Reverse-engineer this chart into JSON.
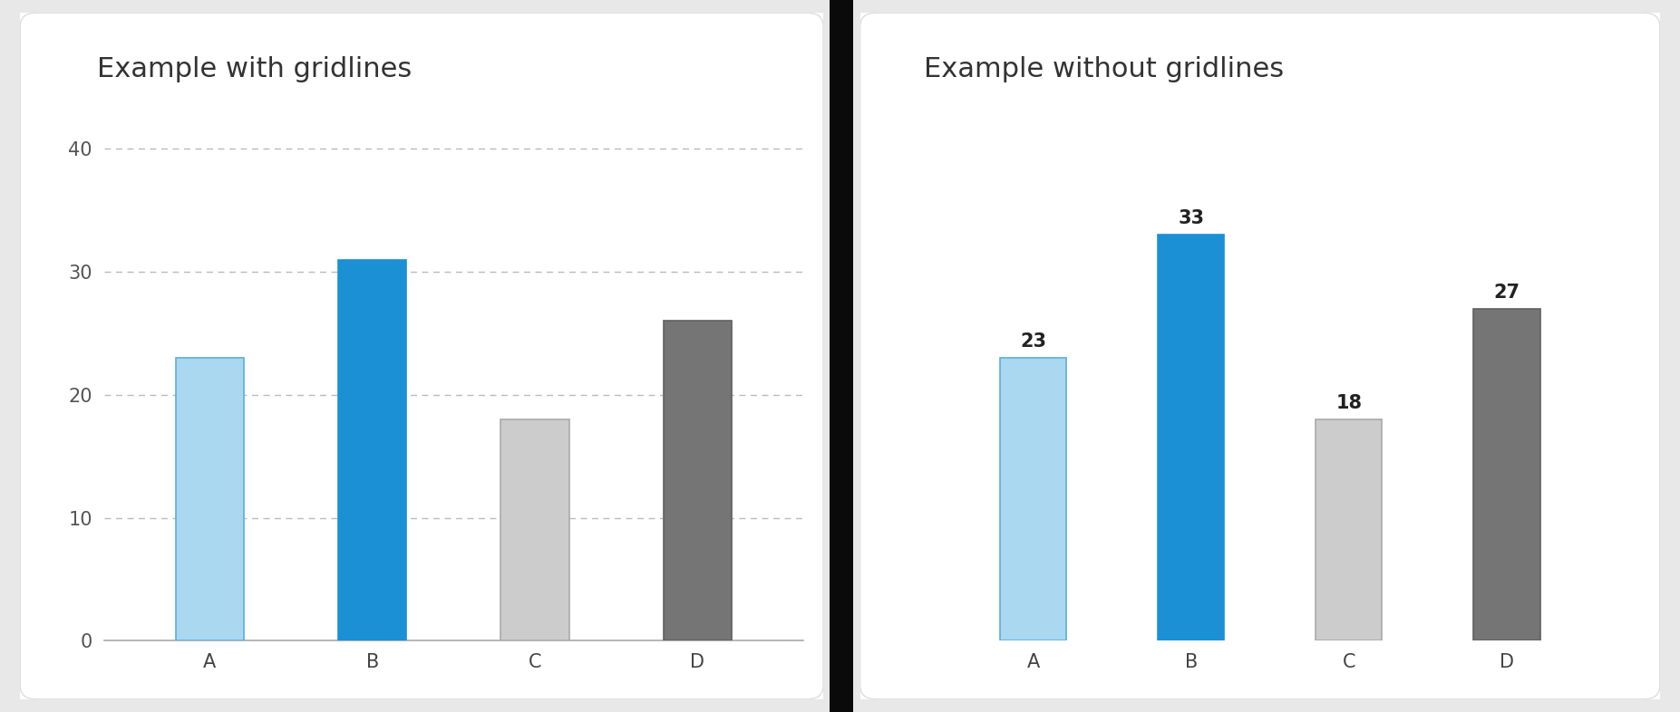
{
  "chart1": {
    "title": "Example with gridlines",
    "categories": [
      "A",
      "B",
      "C",
      "D"
    ],
    "values": [
      23,
      31,
      18,
      26
    ],
    "bar_colors": [
      "#aad8f0",
      "#1b90d4",
      "#cccccc",
      "#757575"
    ],
    "bar_edgecolors": [
      "#5aaedd",
      "#1b90d4",
      "#aaaaaa",
      "#606060"
    ],
    "ylim": [
      0,
      44
    ],
    "yticks": [
      0,
      10,
      20,
      30,
      40
    ],
    "show_gridlines": true,
    "show_yticklabels": true,
    "show_baseline": true,
    "show_bar_labels": false
  },
  "chart2": {
    "title": "Example without gridlines",
    "categories": [
      "A",
      "B",
      "C",
      "D"
    ],
    "values": [
      23,
      33,
      18,
      27
    ],
    "bar_colors": [
      "#aad8f0",
      "#1b90d4",
      "#cccccc",
      "#757575"
    ],
    "bar_edgecolors": [
      "#5aaedd",
      "#1b90d4",
      "#aaaaaa",
      "#606060"
    ],
    "ylim": [
      0,
      44
    ],
    "yticks": [
      0,
      10,
      20,
      30,
      40
    ],
    "show_gridlines": false,
    "show_yticklabels": false,
    "show_baseline": false,
    "show_bar_labels": true
  },
  "fig_bg_color": "#e8e8e8",
  "panel_color": "#ffffff",
  "panel_border_color": "#dddddd",
  "title_fontsize": 22,
  "tick_fontsize": 15,
  "bar_label_fontsize": 15,
  "separator_color": "#0a0a0a"
}
